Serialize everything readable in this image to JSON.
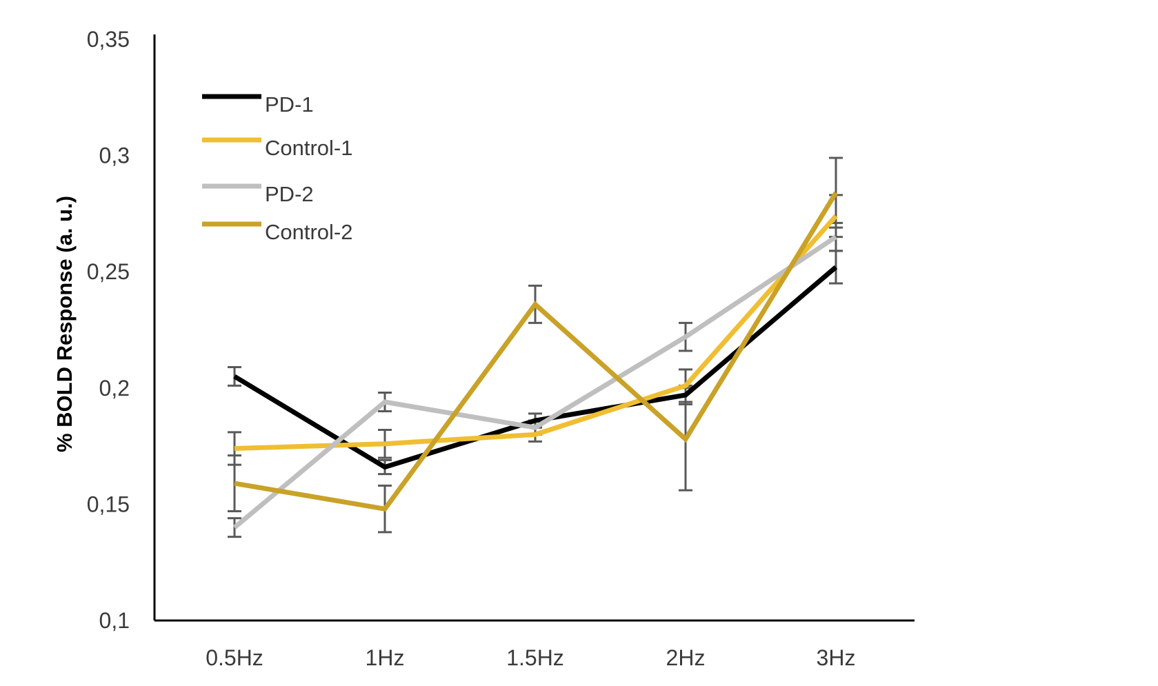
{
  "chart_data": {
    "type": "line",
    "title": "",
    "xlabel": "",
    "ylabel": "% BOLD Response  (a. u.)",
    "categories": [
      "0.5Hz",
      "1Hz",
      "1.5Hz",
      "2Hz",
      "3Hz"
    ],
    "ylim": [
      0.1,
      0.35
    ],
    "yticks": [
      0.1,
      0.15,
      0.2,
      0.25,
      0.3,
      0.35
    ],
    "ytick_labels": [
      "0,1",
      "0,15",
      "0,2",
      "0,25",
      "0,3",
      "0,35"
    ],
    "grid": false,
    "legend": "top-left",
    "error_bar_color": "#595959",
    "series": [
      {
        "name": "PD-1",
        "color": "#000000",
        "values": [
          0.205,
          0.166,
          0.186,
          0.197,
          0.252
        ],
        "errors": [
          0.004,
          0.003,
          0.003,
          0.004,
          0.007
        ]
      },
      {
        "name": "Control-1",
        "color": "#F0BE32",
        "values": [
          0.174,
          0.176,
          0.18,
          0.201,
          0.274
        ],
        "errors": [
          0.007,
          0.006,
          0.003,
          0.007,
          0.009
        ]
      },
      {
        "name": "PD-2",
        "color": "#BFBFBF",
        "values": [
          0.14,
          0.194,
          0.183,
          0.222,
          0.265
        ],
        "errors": [
          0.004,
          0.004,
          0.003,
          0.006,
          0.006
        ]
      },
      {
        "name": "Control-2",
        "color": "#C9A227",
        "values": [
          0.159,
          0.148,
          0.236,
          0.178,
          0.284
        ],
        "errors": [
          0.012,
          0.01,
          0.008,
          0.022,
          0.015
        ]
      }
    ]
  }
}
